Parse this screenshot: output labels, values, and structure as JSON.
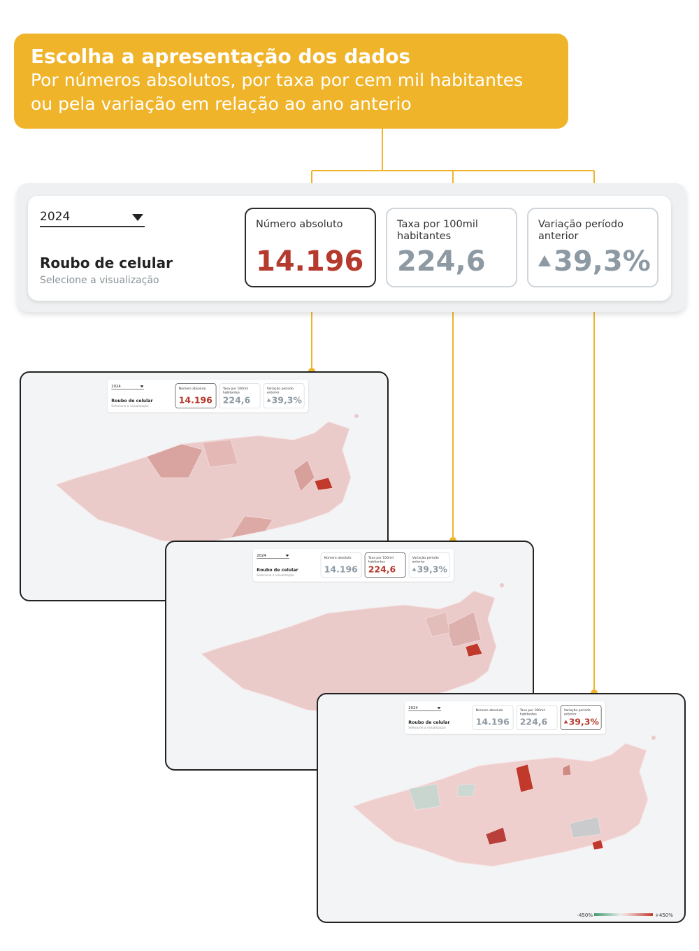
{
  "header": {
    "title": "Escolha a apresentação dos dados",
    "subtitle_lines": [
      "Por números absolutos, por taxa por cem mil habitantes",
      "ou pela variação em relação ao ano anterio"
    ]
  },
  "panel": {
    "year": "2024",
    "crime": "Roubo de celular",
    "hint": "Selecione a visualização",
    "cards": [
      {
        "label": "Número absoluto",
        "value": "14.196"
      },
      {
        "label": "Taxa por 100mil habitantes",
        "value": "224,6"
      },
      {
        "label": "Variação período anterior",
        "value": "39,3%"
      }
    ]
  },
  "legend": {
    "min": "-450%",
    "max": "+450%"
  }
}
